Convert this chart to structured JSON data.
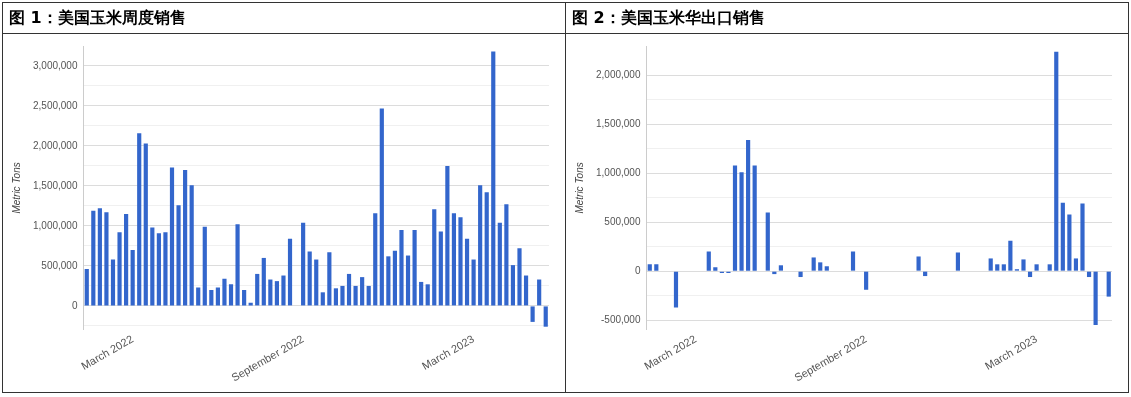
{
  "chart_data": [
    {
      "type": "bar",
      "title": "图 1：美国玉米周度销售",
      "ylabel": "Metric Tons",
      "grid": "y",
      "categories": [
        null,
        null,
        null,
        null,
        null,
        null,
        null,
        "March 2022",
        null,
        null,
        null,
        null,
        null,
        null,
        null,
        null,
        null,
        null,
        null,
        null,
        null,
        null,
        null,
        null,
        null,
        null,
        null,
        null,
        null,
        null,
        null,
        null,
        null,
        "September 2022",
        null,
        null,
        null,
        null,
        null,
        null,
        null,
        null,
        null,
        null,
        null,
        null,
        null,
        null,
        null,
        null,
        null,
        null,
        null,
        null,
        null,
        null,
        null,
        null,
        null,
        "March 2023",
        null,
        null,
        null,
        null,
        null,
        null,
        null,
        null,
        null,
        null,
        null
      ],
      "series": [
        {
          "color": "#3366cc",
          "values": [
            460000,
            1190000,
            1220000,
            1170000,
            580000,
            920000,
            1150000,
            700000,
            2160000,
            2030000,
            980000,
            910000,
            920000,
            1730000,
            1260000,
            1700000,
            1510000,
            230000,
            990000,
            200000,
            230000,
            340000,
            270000,
            1020000,
            200000,
            40000,
            400000,
            600000,
            330000,
            310000,
            380000,
            840000,
            null,
            1040000,
            680000,
            580000,
            170000,
            670000,
            220000,
            250000,
            400000,
            250000,
            360000,
            250000,
            1160000,
            2470000,
            620000,
            690000,
            950000,
            630000,
            950000,
            300000,
            270000,
            1210000,
            930000,
            1750000,
            1160000,
            1110000,
            840000,
            580000,
            1510000,
            1420000,
            3180000,
            1040000,
            1270000,
            510000,
            720000,
            380000,
            -200000,
            330000,
            -260000
          ]
        }
      ],
      "ylim": [
        -300000,
        3250000
      ],
      "yticks": [
        {
          "value": -250000,
          "label": null
        },
        0,
        {
          "value": 250000,
          "label": null
        },
        {
          "value": 500000,
          "label": "500,000"
        },
        {
          "value": 750000,
          "label": null
        },
        {
          "value": 1000000,
          "label": "1,000,000"
        },
        {
          "value": 1250000,
          "label": null
        },
        {
          "value": 1500000,
          "label": "1,500,000"
        },
        {
          "value": 1750000,
          "label": null
        },
        {
          "value": 2000000,
          "label": "2,000,000"
        },
        {
          "value": 2250000,
          "label": null
        },
        {
          "value": 2500000,
          "label": "2,500,000"
        },
        {
          "value": 2750000,
          "label": null
        },
        {
          "value": 3000000,
          "label": "3,000,000"
        }
      ]
    },
    {
      "type": "bar",
      "title": "图 2：美国玉米华出口销售",
      "ylabel": "Metric Tons",
      "grid": "y",
      "categories": [
        null,
        null,
        null,
        null,
        null,
        null,
        null,
        "March 2022",
        null,
        null,
        null,
        null,
        null,
        null,
        null,
        null,
        null,
        null,
        null,
        null,
        null,
        null,
        null,
        null,
        null,
        null,
        null,
        null,
        null,
        null,
        null,
        null,
        null,
        "September 2022",
        null,
        null,
        null,
        null,
        null,
        null,
        null,
        null,
        null,
        null,
        null,
        null,
        null,
        null,
        null,
        null,
        null,
        null,
        null,
        null,
        null,
        null,
        null,
        null,
        null,
        "March 2023",
        null,
        null,
        null,
        null,
        null,
        null,
        null,
        null,
        null,
        null,
        null
      ],
      "series": [
        {
          "color": "#3366cc",
          "values": [
            70000,
            70000,
            0,
            0,
            -370000,
            0,
            0,
            0,
            0,
            200000,
            40000,
            -20000,
            -20000,
            1080000,
            1010000,
            1340000,
            1080000,
            null,
            600000,
            -30000,
            60000,
            0,
            0,
            -60000,
            null,
            140000,
            90000,
            50000,
            0,
            0,
            0,
            200000,
            0,
            -190000,
            null,
            0,
            0,
            0,
            0,
            0,
            0,
            150000,
            -50000,
            0,
            0,
            0,
            0,
            190000,
            0,
            0,
            0,
            0,
            130000,
            70000,
            70000,
            310000,
            20000,
            120000,
            -60000,
            70000,
            0,
            70000,
            2240000,
            700000,
            580000,
            130000,
            690000,
            -60000,
            -550000,
            0,
            -260000
          ]
        }
      ],
      "ylim": [
        -600000,
        2300000
      ],
      "yticks": [
        {
          "value": -500000,
          "label": "-500,000"
        },
        {
          "value": -250000,
          "label": null
        },
        0,
        {
          "value": 250000,
          "label": null
        },
        {
          "value": 500000,
          "label": "500,000"
        },
        {
          "value": 750000,
          "label": null
        },
        {
          "value": 1000000,
          "label": "1,000,000"
        },
        {
          "value": 1250000,
          "label": null
        },
        {
          "value": 1500000,
          "label": "1,500,000"
        },
        {
          "value": 1750000,
          "label": null
        },
        {
          "value": 2000000,
          "label": "2,000,000"
        }
      ]
    }
  ]
}
